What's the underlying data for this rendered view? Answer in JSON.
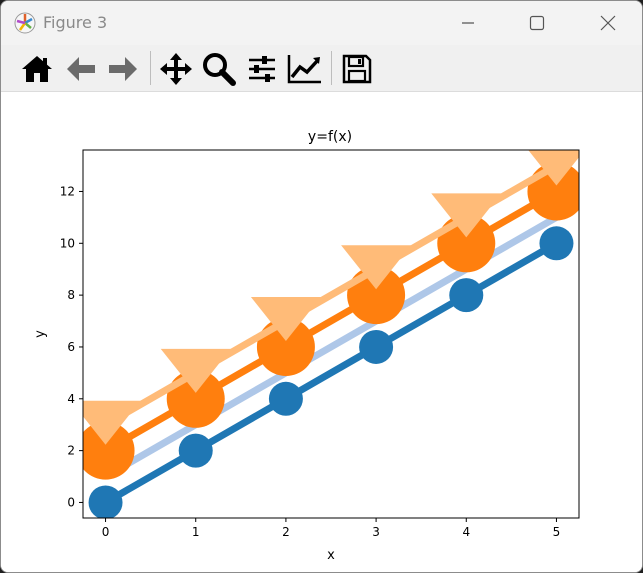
{
  "window": {
    "title": "Figure 3"
  },
  "toolbar": {
    "buttons": [
      "home-icon",
      "back-arrow-icon",
      "forward-arrow-icon",
      "pan-icon",
      "zoom-icon",
      "subplots-config-icon",
      "edit-axis-icon",
      "save-icon"
    ]
  },
  "chart_data": {
    "type": "line",
    "title": "y=f(x)",
    "xlabel": "x",
    "ylabel": "y",
    "xlim": [
      -0.25,
      5.25
    ],
    "ylim": [
      -0.6,
      13.6
    ],
    "xticks": [
      0,
      1,
      2,
      3,
      4,
      5
    ],
    "yticks": [
      0,
      2,
      4,
      6,
      8,
      10,
      12
    ],
    "x": [
      0,
      1,
      2,
      3,
      4,
      5
    ],
    "series": [
      {
        "values": [
          0,
          2,
          4,
          6,
          8,
          10
        ],
        "color": "#1f77b4",
        "marker": "circle"
      },
      {
        "values": [
          1,
          3,
          5,
          7,
          9,
          11
        ],
        "color": "#aec7e8",
        "marker": "none"
      },
      {
        "values": [
          2,
          4,
          6,
          8,
          10,
          12
        ],
        "color": "#ff7f0e",
        "marker": "circle"
      },
      {
        "values": [
          3,
          5,
          7,
          9,
          11,
          13
        ],
        "color": "#ffbb78",
        "marker": "triangle-down"
      }
    ],
    "grid": false
  }
}
